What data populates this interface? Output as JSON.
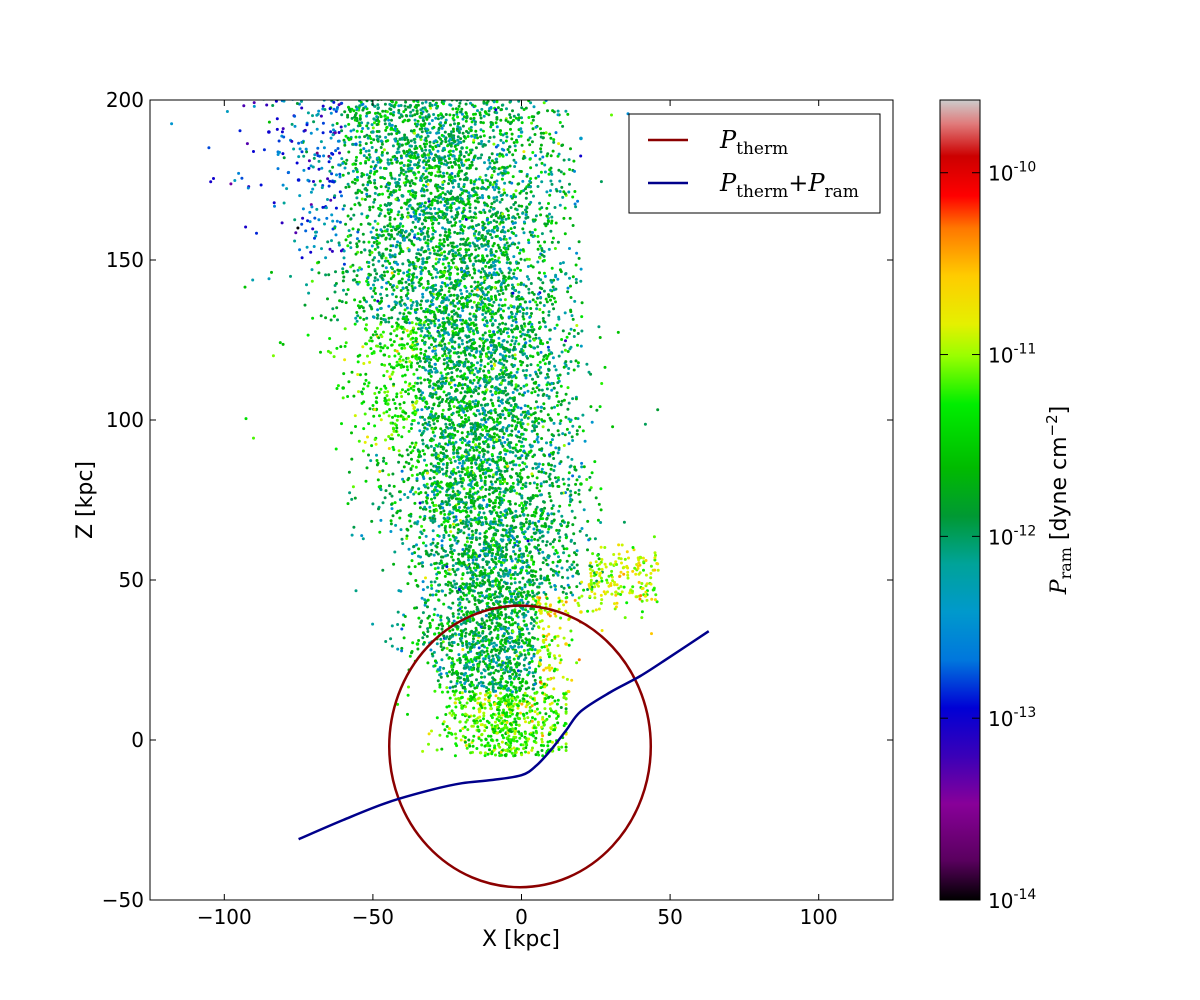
{
  "chart_data": {
    "type": "scatter",
    "xlabel": "X [kpc]",
    "ylabel": "Z [kpc]",
    "xlim": [
      -125,
      125
    ],
    "ylim": [
      -50,
      200
    ],
    "xticks": [
      -100,
      -50,
      0,
      50,
      100
    ],
    "yticks": [
      -50,
      0,
      50,
      100,
      150,
      200
    ],
    "xtick_labels": [
      "−100",
      "−50",
      "0",
      "50",
      "100"
    ],
    "ytick_labels": [
      "−50",
      "0",
      "50",
      "100",
      "150",
      "200"
    ],
    "grid": false,
    "legend_position": "top-right",
    "series": [
      {
        "name_main": "P",
        "name_sub": "therm",
        "type": "line",
        "color": "#8b0000",
        "center": [
          -0.5,
          -2
        ],
        "radii": [
          44,
          44
        ],
        "note_shape": "closed curve"
      },
      {
        "name_main": "P",
        "name_sub": "therm",
        "name_plus": "+",
        "name_main2": "P",
        "name_sub2": "ram",
        "type": "line",
        "color": "#00008b",
        "x": [
          -75,
          -60,
          -45,
          -30,
          -20,
          -10,
          0,
          5,
          10,
          15,
          20,
          30,
          40,
          50,
          63
        ],
        "y": [
          -31,
          -25,
          -19.5,
          -15.5,
          -13.5,
          -12.5,
          -11,
          -8,
          -3,
          3,
          9,
          15,
          20,
          26,
          34
        ]
      }
    ],
    "scatter": {
      "description_color": "P_ram, log-scaled",
      "color_range_log10": [
        -14,
        -9.6
      ],
      "samples": [
        {
          "x": -50,
          "z": 190,
          "log_p": -12.2
        },
        {
          "x": -40,
          "z": 170,
          "log_p": -12.1
        },
        {
          "x": -20,
          "z": 185,
          "log_p": -12.0
        },
        {
          "x": 0,
          "z": 190,
          "log_p": -12.3
        },
        {
          "x": 20,
          "z": 188,
          "log_p": -12.4
        },
        {
          "x": -75,
          "z": 175,
          "log_p": -12.9
        },
        {
          "x": -85,
          "z": 190,
          "log_p": -13.0
        },
        {
          "x": -60,
          "z": 110,
          "log_p": -11.5
        },
        {
          "x": -45,
          "z": 105,
          "log_p": -11.2
        },
        {
          "x": -30,
          "z": 80,
          "log_p": -11.6
        },
        {
          "x": 10,
          "z": 100,
          "log_p": -11.8
        },
        {
          "x": 20,
          "z": 80,
          "log_p": -11.5
        },
        {
          "x": 30,
          "z": 55,
          "log_p": -11.0
        },
        {
          "x": 40,
          "z": 57,
          "log_p": -11.0
        },
        {
          "x": 20,
          "z": 40,
          "log_p": -10.7
        },
        {
          "x": 15,
          "z": 30,
          "log_p": -10.6
        },
        {
          "x": -20,
          "z": 10,
          "log_p": -11.2
        },
        {
          "x": -10,
          "z": 0,
          "log_p": -11.3
        },
        {
          "x": 10,
          "z": -3,
          "log_p": -11.1
        },
        {
          "x": -35,
          "z": 30,
          "log_p": -11.3
        },
        {
          "x": 5,
          "z": 60,
          "log_p": -12.0
        }
      ]
    }
  },
  "colorbar": {
    "label_main": "P",
    "label_sub": "ram",
    "label_rest": " [dyne cm",
    "label_sup": "−2",
    "label_end": "]",
    "log_min": -14,
    "log_max": -9.6,
    "ticks": [
      {
        "mant": "10",
        "exp": "-10",
        "log": -10
      },
      {
        "mant": "10",
        "exp": "-11",
        "log": -11
      },
      {
        "mant": "10",
        "exp": "-12",
        "log": -12
      },
      {
        "mant": "10",
        "exp": "-13",
        "log": -13
      },
      {
        "mant": "10",
        "exp": "-14",
        "log": -14
      }
    ]
  }
}
